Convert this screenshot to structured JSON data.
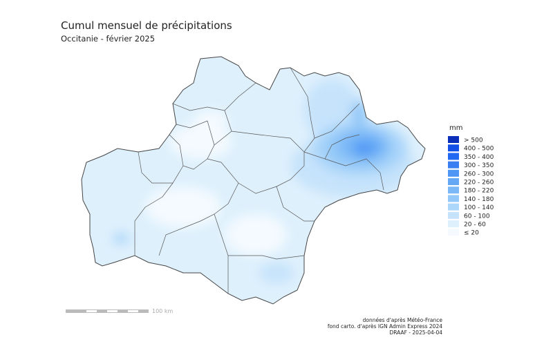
{
  "header": {
    "title": "Cumul mensuel de précipitations",
    "subtitle": "Occitanie - février 2025"
  },
  "legend": {
    "title": "mm",
    "items": [
      {
        "label": "> 500",
        "color": "#0b2fb8"
      },
      {
        "label": "400 - 500",
        "color": "#1450e6"
      },
      {
        "label": "350 - 400",
        "color": "#2368f0"
      },
      {
        "label": "300 - 350",
        "color": "#3a7ff2"
      },
      {
        "label": "260 - 300",
        "color": "#4f95f4"
      },
      {
        "label": "220 - 260",
        "color": "#64a8f6"
      },
      {
        "label": "180 - 220",
        "color": "#7ab8f7"
      },
      {
        "label": "140 - 180",
        "color": "#93c8f8"
      },
      {
        "label": "100 - 140",
        "color": "#acd6fa"
      },
      {
        "label": "60 - 100",
        "color": "#c6e3fb"
      },
      {
        "label": "20 - 60",
        "color": "#def0fc"
      },
      {
        "label": "≤ 20",
        "color": "#f4faff"
      }
    ]
  },
  "scale_bar": {
    "label": "100 km"
  },
  "credits": [
    "données d'après Météo-France",
    "fond carto. d'après IGN Admin Express 2024",
    "DRAAF - 2025-04-04"
  ]
}
